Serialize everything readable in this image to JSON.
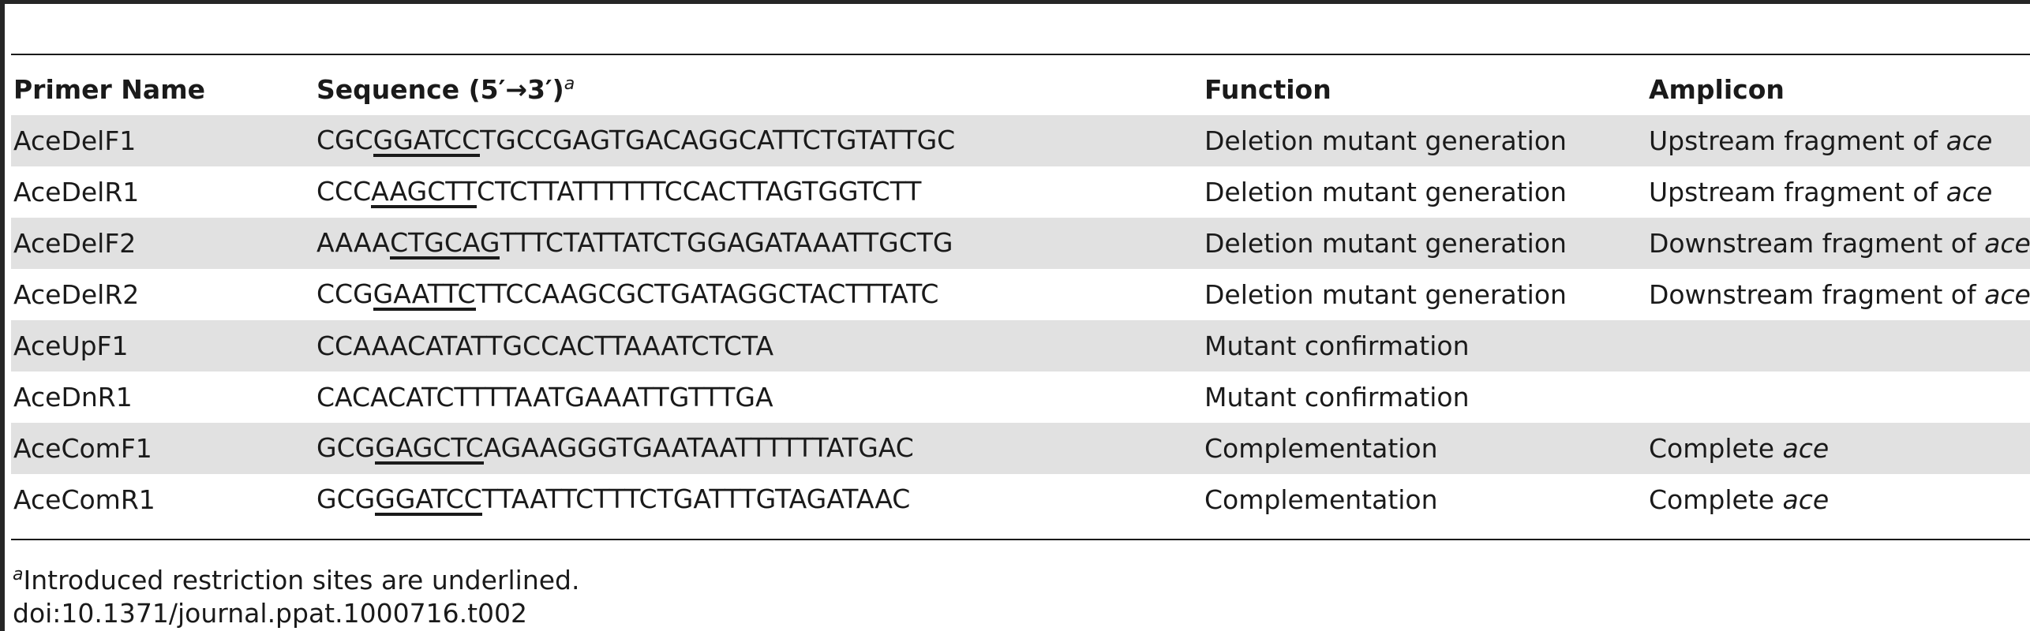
{
  "table": {
    "headers": {
      "primer_name": "Primer Name",
      "sequence": "Sequence (5′→3′)",
      "sequence_note_marker": "a",
      "function": "Function",
      "amplicon": "Amplicon"
    },
    "rows": [
      {
        "name": "AceDelF1",
        "seq_pre": "CGC",
        "seq_site": "GGATCC",
        "seq_post": "TGCCGAGTGACAGGCATTCTGTATTGC",
        "function": "Deletion mutant generation",
        "amplicon_text": "Upstream fragment of ",
        "amplicon_gene": "ace"
      },
      {
        "name": "AceDelR1",
        "seq_pre": "CCC",
        "seq_site": "AAGCTT",
        "seq_post": "CTCTTATTTTTTCCACTTAGTGGTCTT",
        "function": "Deletion mutant generation",
        "amplicon_text": "Upstream fragment of ",
        "amplicon_gene": "ace"
      },
      {
        "name": "AceDelF2",
        "seq_pre": "AAAA",
        "seq_site": "CTGCAG",
        "seq_post": "TTTCTATTATCTGGAGATAAATTGCTG",
        "function": "Deletion mutant generation",
        "amplicon_text": "Downstream fragment of ",
        "amplicon_gene": "ace"
      },
      {
        "name": "AceDelR2",
        "seq_pre": "CCG",
        "seq_site": "GAATTC",
        "seq_post": "TTCCAAGCGCTGATAGGCTACTTTATC",
        "function": "Deletion mutant generation",
        "amplicon_text": "Downstream fragment of ",
        "amplicon_gene": "ace"
      },
      {
        "name": "AceUpF1",
        "seq_pre": "CCAAACATATTGCCACTTAAATCTCTA",
        "seq_site": "",
        "seq_post": "",
        "function": "Mutant confirmation",
        "amplicon_text": "",
        "amplicon_gene": ""
      },
      {
        "name": "AceDnR1",
        "seq_pre": "CACACATCTTTTAATGAAATTGTTTGA",
        "seq_site": "",
        "seq_post": "",
        "function": "Mutant confirmation",
        "amplicon_text": "",
        "amplicon_gene": ""
      },
      {
        "name": "AceComF1",
        "seq_pre": "GCG",
        "seq_site": "GAGCTC",
        "seq_post": "AGAAGGGTGAATAATTTTTTATGAC",
        "function": "Complementation",
        "amplicon_text": "Complete ",
        "amplicon_gene": "ace"
      },
      {
        "name": "AceComR1",
        "seq_pre": "GCG",
        "seq_site": "GGATCC",
        "seq_post": "TTAATTCTTTCTGATTTGTAGATAAC",
        "function": "Complementation",
        "amplicon_text": "Complete ",
        "amplicon_gene": "ace"
      }
    ]
  },
  "footnote": {
    "marker": "a",
    "text": "Introduced restriction sites are underlined."
  },
  "doi": "doi:10.1371/journal.ppat.1000716.t002"
}
